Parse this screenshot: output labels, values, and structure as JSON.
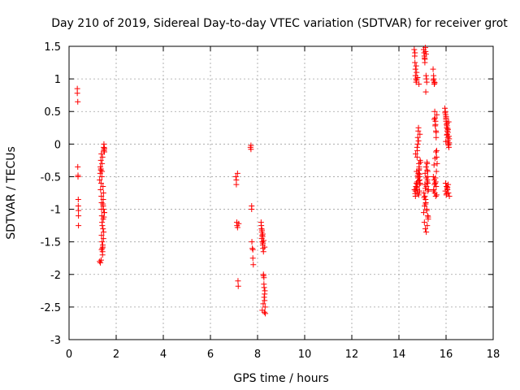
{
  "chart_data": {
    "type": "scatter",
    "title": "Day 210 of 2019, Sidereal Day-to-day VTEC variation (SDTVAR) for receiver grot",
    "xlabel": "GPS time / hours",
    "ylabel": "SDTVAR / TECUs",
    "xlim": [
      0,
      18
    ],
    "ylim": [
      -3,
      1.5
    ],
    "xticks": [
      0,
      2,
      4,
      6,
      8,
      10,
      12,
      14,
      16,
      18
    ],
    "xtick_labels": [
      "0",
      "2",
      "4",
      "6",
      "8",
      "10",
      "12",
      "14",
      "16",
      "18"
    ],
    "yticks": [
      1.5,
      1,
      0.5,
      0,
      -0.5,
      -1,
      -1.5,
      -2,
      -2.5,
      -3
    ],
    "ytick_labels": [
      "1.5",
      "1",
      "0.5",
      "0",
      "-0.5",
      "-1",
      "-1.5",
      "-2",
      "-2.5",
      "-3"
    ],
    "grid": true,
    "marker": "plus",
    "color": "#ff0000",
    "series": [
      {
        "name": "SDTVAR",
        "x": [
          0.35,
          0.35,
          0.37,
          0.37,
          0.38,
          0.38,
          0.39,
          0.39,
          0.4,
          0.4,
          0.4,
          1.3,
          1.32,
          1.33,
          1.35,
          1.35,
          1.36,
          1.37,
          1.38,
          1.38,
          1.39,
          1.4,
          1.4,
          1.41,
          1.42,
          1.42,
          1.43,
          1.44,
          1.45,
          1.45,
          1.46,
          1.47,
          1.48,
          1.48,
          1.49,
          1.5,
          1.5,
          1.3,
          1.33,
          1.36,
          1.38,
          1.4,
          1.42,
          1.44,
          1.46,
          1.48,
          1.5,
          1.35,
          1.4,
          1.45,
          1.47,
          1.43,
          1.38,
          1.41,
          1.34,
          1.46,
          1.39,
          1.44,
          1.37,
          1.49,
          7.08,
          7.1,
          7.1,
          7.12,
          7.13,
          7.15,
          7.15,
          7.17,
          7.18,
          7.2,
          7.7,
          7.72,
          7.75,
          7.75,
          7.78,
          7.8,
          7.8,
          7.82,
          7.72,
          7.76,
          8.15,
          8.17,
          8.18,
          8.2,
          8.2,
          8.22,
          8.23,
          8.25,
          8.25,
          8.27,
          8.28,
          8.3,
          8.3,
          8.32,
          8.33,
          8.18,
          8.22,
          8.26,
          8.3,
          8.2,
          8.24,
          8.28,
          8.16,
          8.21,
          8.29,
          8.19,
          8.23,
          8.27,
          8.31,
          8.25,
          14.65,
          14.67,
          14.68,
          14.7,
          14.7,
          14.72,
          14.73,
          14.75,
          14.75,
          14.77,
          14.78,
          14.8,
          14.8,
          14.82,
          14.83,
          14.85,
          14.85,
          14.87,
          14.88,
          14.9,
          14.72,
          14.76,
          14.8,
          14.84,
          14.88,
          14.7,
          14.74,
          14.78,
          14.82,
          14.86,
          14.9,
          14.68,
          14.73,
          14.79,
          14.85,
          14.71,
          14.77,
          14.83,
          14.89,
          14.75,
          14.81,
          14.87,
          14.66,
          14.69,
          14.74,
          14.8,
          14.86,
          14.92,
          14.76,
          14.84,
          14.88,
          14.7,
          14.78,
          14.82,
          15.05,
          15.07,
          15.08,
          15.1,
          15.1,
          15.12,
          15.13,
          15.15,
          15.15,
          15.17,
          15.18,
          15.2,
          15.2,
          15.22,
          15.23,
          15.25,
          15.06,
          15.1,
          15.14,
          15.18,
          15.22,
          15.08,
          15.12,
          15.16,
          15.2,
          15.24,
          15.05,
          15.09,
          15.13,
          15.17,
          15.21,
          15.11,
          15.15,
          15.19,
          15.23,
          15.07,
          15.13,
          15.18,
          15.24,
          15.1,
          15.16,
          15.22,
          15.12,
          15.2,
          15.09,
          15.14,
          15.45,
          15.47,
          15.48,
          15.5,
          15.5,
          15.52,
          15.53,
          15.55,
          15.55,
          15.57,
          15.58,
          15.6,
          15.6,
          15.62,
          15.46,
          15.5,
          15.54,
          15.58,
          15.48,
          15.52,
          15.56,
          15.6,
          15.47,
          15.51,
          15.55,
          15.59,
          15.49,
          15.53,
          15.57,
          15.61,
          15.5,
          15.54,
          15.58,
          15.46,
          15.52,
          15.56,
          15.95,
          15.97,
          15.98,
          16.0,
          16.0,
          16.02,
          16.03,
          16.05,
          16.05,
          16.07,
          16.08,
          16.1,
          16.1,
          16.12,
          16.13,
          15.96,
          16.0,
          16.04,
          16.08,
          16.12,
          15.98,
          16.02,
          16.06,
          16.1,
          16.14,
          15.97,
          16.01,
          16.05,
          16.09,
          16.13,
          16.0,
          16.04,
          16.08,
          15.99,
          16.03,
          16.07,
          16.11,
          16.02,
          16.06,
          16.1
        ],
        "y": [
          0.85,
          0.78,
          0.65,
          -0.35,
          -0.48,
          -0.5,
          -0.85,
          -0.95,
          -1.02,
          -1.1,
          -1.25,
          -0.55,
          -0.45,
          -0.35,
          -0.25,
          -0.4,
          -0.6,
          -0.8,
          -0.9,
          -1.0,
          -1.1,
          -1.2,
          -1.5,
          -1.6,
          -1.65,
          -1.7,
          -1.55,
          -1.3,
          -1.15,
          -0.95,
          -0.75,
          -0.05,
          -0.1,
          0.0,
          -0.08,
          -0.12,
          -1.05,
          -1.8,
          -1.82,
          -1.78,
          -1.4,
          -0.3,
          -0.2,
          -0.65,
          -1.0,
          -1.12,
          -0.06,
          -0.38,
          -0.42,
          -0.85,
          -1.35,
          -1.58,
          -1.62,
          -1.25,
          -0.7,
          -1.45,
          -0.5,
          -0.92,
          -0.15,
          -1.05,
          -0.5,
          -0.55,
          -0.62,
          -1.2,
          -1.25,
          -1.28,
          -0.45,
          -2.1,
          -2.18,
          -1.22,
          -0.05,
          -0.02,
          -0.95,
          -1.0,
          -1.6,
          -1.62,
          -1.75,
          -1.85,
          -0.08,
          -1.5,
          -1.2,
          -1.3,
          -1.35,
          -1.4,
          -1.5,
          -1.55,
          -1.6,
          -2.0,
          -2.02,
          -2.05,
          -2.2,
          -2.3,
          -2.4,
          -2.5,
          -2.6,
          -1.45,
          -1.38,
          -1.48,
          -1.58,
          -2.55,
          -2.45,
          -2.35,
          -1.25,
          -1.42,
          -2.58,
          -1.32,
          -1.52,
          -2.15,
          -2.25,
          -1.65,
          1.45,
          1.35,
          1.25,
          1.15,
          1.05,
          1.0,
          0.95,
          1.1,
          0.98,
          -0.2,
          -0.1,
          0.0,
          0.1,
          0.2,
          0.25,
          -0.3,
          -0.4,
          -0.5,
          -0.55,
          -0.6,
          -0.65,
          -0.7,
          -0.75,
          -0.78,
          -0.72,
          -0.8,
          -0.68,
          -0.58,
          -0.45,
          -0.35,
          -0.25,
          1.4,
          1.2,
          1.02,
          0.92,
          -0.15,
          -0.05,
          0.05,
          0.15,
          -0.42,
          -0.52,
          -0.62,
          -0.7,
          -0.76,
          -0.6,
          -0.48,
          -0.38,
          -0.28,
          -0.66,
          -0.56,
          -0.46,
          -0.72,
          -0.62,
          -0.5,
          1.45,
          1.4,
          1.35,
          1.3,
          1.25,
          1.48,
          1.42,
          1.38,
          1.05,
          1.0,
          0.95,
          -0.3,
          -0.4,
          -0.5,
          -0.6,
          -0.7,
          -0.75,
          -0.8,
          -0.9,
          -1.0,
          -1.1,
          -1.2,
          -1.3,
          -1.35,
          -1.25,
          -1.15,
          -1.05,
          -0.95,
          -0.85,
          -0.65,
          -0.55,
          -0.45,
          -0.35,
          -0.28,
          -0.72,
          -0.82,
          -0.92,
          -1.02,
          -1.12,
          -0.62,
          -0.52,
          -0.42,
          -0.68,
          -0.58,
          1.32,
          0.8,
          1.15,
          1.05,
          1.0,
          0.95,
          0.92,
          0.5,
          0.4,
          0.35,
          0.3,
          0.2,
          0.1,
          -0.1,
          -0.2,
          -0.3,
          -0.5,
          -0.55,
          -0.6,
          -0.65,
          -0.7,
          -0.75,
          -0.8,
          -0.78,
          -0.72,
          -0.62,
          -0.52,
          -0.42,
          -0.32,
          -0.22,
          -0.12,
          0.45,
          0.38,
          0.28,
          0.18,
          0.98,
          0.94,
          -0.58,
          0.55,
          0.5,
          0.45,
          0.4,
          0.35,
          0.3,
          0.25,
          0.2,
          0.15,
          0.1,
          0.05,
          0.0,
          -0.02,
          -0.05,
          0.02,
          0.48,
          0.42,
          0.32,
          0.22,
          0.12,
          -0.6,
          -0.65,
          -0.7,
          -0.75,
          -0.8,
          -0.72,
          -0.78,
          -0.68,
          -0.62,
          0.08,
          0.38,
          0.28,
          0.18,
          0.04,
          0.14,
          0.24,
          0.34,
          -0.76,
          -0.66,
          0.0
        ]
      }
    ]
  }
}
